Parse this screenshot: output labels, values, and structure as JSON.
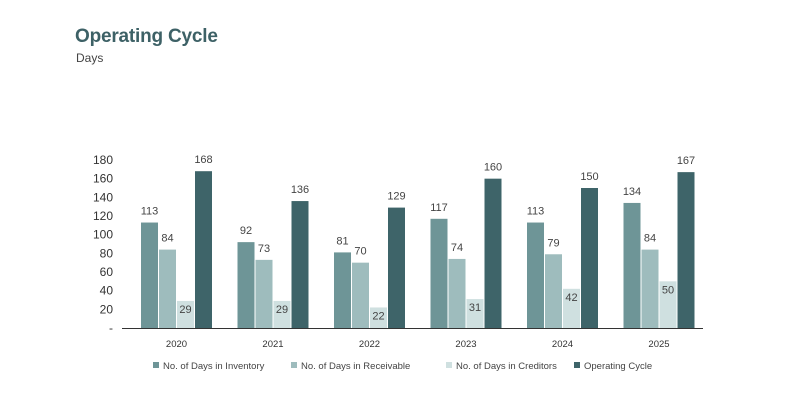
{
  "chart_data": {
    "type": "bar",
    "title": "Operating Cycle",
    "subtitle": "Days",
    "xlabel": "",
    "ylabel": "",
    "categories": [
      "2020",
      "2021",
      "2022",
      "2023",
      "2024",
      "2025"
    ],
    "ylim": [
      0,
      180
    ],
    "yticks": [
      0,
      20,
      40,
      60,
      80,
      100,
      120,
      140,
      160,
      180
    ],
    "yticklabels": [
      "-",
      "20",
      "40",
      "60",
      "80",
      "100",
      "120",
      "140",
      "160",
      "180"
    ],
    "grid": false,
    "legend_position": "bottom",
    "series": [
      {
        "name": "No. of Days in Inventory",
        "color": "#6e9597",
        "values": [
          113,
          92,
          81,
          117,
          113,
          134
        ]
      },
      {
        "name": "No. of Days in Receivable",
        "color": "#9ebcbd",
        "values": [
          84,
          73,
          70,
          74,
          79,
          84
        ]
      },
      {
        "name": "No. of Days in Creditors",
        "color": "#cfe0e0",
        "values": [
          29,
          29,
          22,
          31,
          42,
          50
        ]
      },
      {
        "name": "Operating Cycle",
        "color": "#3e6469",
        "values": [
          168,
          136,
          129,
          160,
          150,
          167
        ]
      }
    ]
  }
}
